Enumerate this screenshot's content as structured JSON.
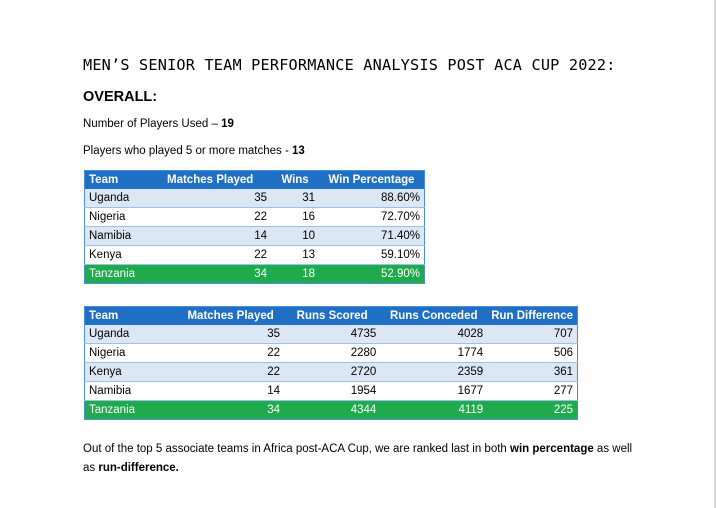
{
  "document": {
    "title": "MEN’S SENIOR TEAM PERFORMANCE ANALYSIS POST ACA CUP 2022:",
    "section_heading": "OVERALL:",
    "players_used_label": "Number of Players Used – ",
    "players_used_value": "19",
    "players_5plus_label": "Players who played 5 or more matches - ",
    "players_5plus_value": "13"
  },
  "table_win": {
    "headers": [
      "Team",
      "Matches Played",
      "Wins",
      "Win Percentage"
    ],
    "rows": [
      [
        "Uganda",
        "35",
        "31",
        "88.60%"
      ],
      [
        "Nigeria",
        "22",
        "16",
        "72.70%"
      ],
      [
        "Namibia",
        "14",
        "10",
        "71.40%"
      ],
      [
        "Kenya",
        "22",
        "13",
        "59.10%"
      ],
      [
        "Tanzania",
        "34",
        "18",
        "52.90%"
      ]
    ]
  },
  "table_runs": {
    "headers": [
      "Team",
      "Matches Played",
      "Runs Scored",
      "Runs Conceded",
      "Run Difference"
    ],
    "rows": [
      [
        "Uganda",
        "35",
        "4735",
        "4028",
        "707"
      ],
      [
        "Nigeria",
        "22",
        "2280",
        "1774",
        "506"
      ],
      [
        "Kenya",
        "22",
        "2720",
        "2359",
        "361"
      ],
      [
        "Namibia",
        "14",
        "1954",
        "1677",
        "277"
      ],
      [
        "Tanzania",
        "34",
        "4344",
        "4119",
        "225"
      ]
    ]
  },
  "conclusion": {
    "text_1": "Out of the top 5 associate teams in Africa post-ACA Cup, we are ranked last in both ",
    "bold_1": "win percentage",
    "text_2": " as well as ",
    "bold_2": "run-difference."
  },
  "colors": {
    "header_blue": "#1f6fc5",
    "row_light_blue": "#dbe7f5",
    "highlight_green": "#1faa4b"
  }
}
